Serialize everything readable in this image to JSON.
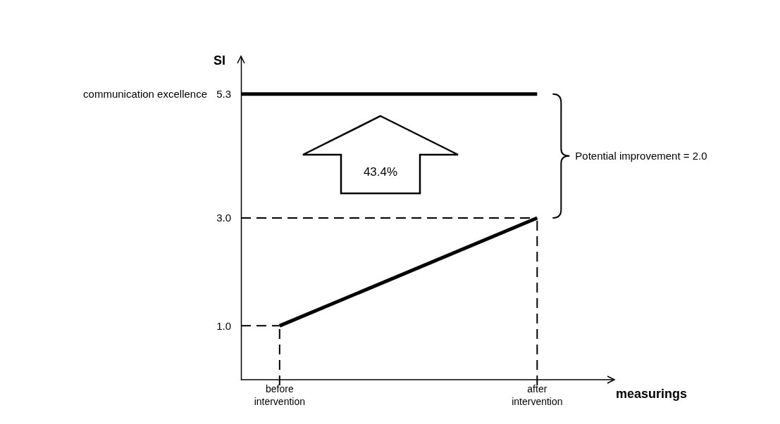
{
  "chart_data": {
    "type": "line",
    "xlabel": "measurings",
    "ylabel": "SI",
    "categories": [
      "before intervention",
      "after intervention"
    ],
    "series": [
      {
        "color": "#000000",
        "values": [
          1.0,
          3.0
        ]
      }
    ],
    "ylim": [
      0,
      6
    ],
    "yticks": [
      {
        "value": 1.0,
        "label": "1.0"
      },
      {
        "value": 3.0,
        "label": "3.0"
      },
      {
        "value": 5.3,
        "label": "5.3"
      }
    ],
    "marker": "none",
    "line_style": "solid",
    "ref_lines": [
      {
        "axis": "y",
        "value": 5.3,
        "label": "communication excellence",
        "line_style": "solid",
        "color": "#000000"
      },
      {
        "axis": "y",
        "value": 3.0,
        "line_style": "dashed",
        "color": "#000000"
      },
      {
        "axis": "y",
        "value": 1.0,
        "line_style": "dashed",
        "color": "#000000"
      },
      {
        "axis": "x",
        "value": "before intervention",
        "line_style": "dashed",
        "color": "#000000"
      },
      {
        "axis": "x",
        "value": "after intervention",
        "line_style": "dashed",
        "color": "#000000"
      }
    ],
    "annotations": [
      "43.4%",
      "Potential improvement = 2.0"
    ]
  }
}
